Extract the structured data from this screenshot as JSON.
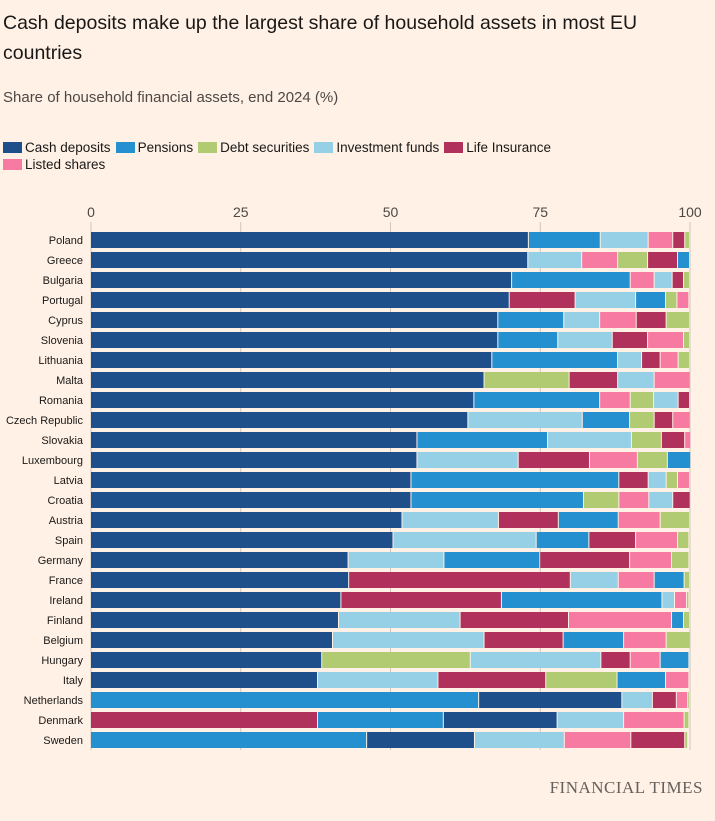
{
  "title": "Cash deposits make up the largest share of household assets in most EU countries",
  "subtitle": "Share of household financial assets, end 2024 (%)",
  "source": "FINANCIAL TIMES",
  "colors": {
    "cash": "#1f4f8b",
    "pensions": "#2590d0",
    "debt": "#b0cb72",
    "inv": "#96d0e6",
    "life": "#b0325c",
    "listed": "#f77aa2",
    "background": "#fff1e5"
  },
  "chart_data": {
    "type": "bar",
    "orientation": "horizontal-stacked",
    "xlim": [
      0,
      100
    ],
    "xticks": [
      0,
      25,
      50,
      75,
      100
    ],
    "grid": true,
    "legend_placement": "top-left",
    "legend": [
      {
        "key": "cash",
        "name": "Cash deposits"
      },
      {
        "key": "pensions",
        "name": "Pensions"
      },
      {
        "key": "debt",
        "name": "Debt securities"
      },
      {
        "key": "inv",
        "name": "Investment funds"
      },
      {
        "key": "life",
        "name": "Life Insurance"
      },
      {
        "key": "listed",
        "name": "Listed shares"
      }
    ],
    "rows": [
      {
        "country": "Poland",
        "segments": [
          [
            "cash",
            73.1
          ],
          [
            "pensions",
            12.0
          ],
          [
            "inv",
            8.0
          ],
          [
            "listed",
            4.1
          ],
          [
            "life",
            2.0
          ],
          [
            "debt",
            0.8
          ]
        ]
      },
      {
        "country": "Greece",
        "segments": [
          [
            "cash",
            73.0
          ],
          [
            "inv",
            9.0
          ],
          [
            "listed",
            6.0
          ],
          [
            "debt",
            5.0
          ],
          [
            "life",
            5.0
          ],
          [
            "pensions",
            2.0
          ]
        ]
      },
      {
        "country": "Bulgaria",
        "segments": [
          [
            "cash",
            70.3
          ],
          [
            "pensions",
            19.8
          ],
          [
            "listed",
            4.0
          ],
          [
            "inv",
            3.0
          ],
          [
            "life",
            1.9
          ],
          [
            "debt",
            1.0
          ]
        ]
      },
      {
        "country": "Portugal",
        "segments": [
          [
            "cash",
            69.9
          ],
          [
            "life",
            11.0
          ],
          [
            "inv",
            10.1
          ],
          [
            "pensions",
            5.0
          ],
          [
            "debt",
            1.9
          ],
          [
            "listed",
            2.0
          ]
        ]
      },
      {
        "country": "Cyprus",
        "segments": [
          [
            "cash",
            68.0
          ],
          [
            "pensions",
            11.0
          ],
          [
            "inv",
            6.0
          ],
          [
            "listed",
            6.1
          ],
          [
            "life",
            5.0
          ],
          [
            "debt",
            3.9
          ]
        ]
      },
      {
        "country": "Slovenia",
        "segments": [
          [
            "cash",
            68.0
          ],
          [
            "pensions",
            10.0
          ],
          [
            "inv",
            9.1
          ],
          [
            "life",
            5.9
          ],
          [
            "listed",
            6.0
          ],
          [
            "debt",
            1.0
          ]
        ]
      },
      {
        "country": "Lithuania",
        "segments": [
          [
            "cash",
            67.0
          ],
          [
            "pensions",
            21.0
          ],
          [
            "inv",
            4.0
          ],
          [
            "life",
            3.1
          ],
          [
            "listed",
            3.0
          ],
          [
            "debt",
            1.9
          ]
        ]
      },
      {
        "country": "Malta",
        "segments": [
          [
            "cash",
            65.7
          ],
          [
            "debt",
            14.2
          ],
          [
            "life",
            8.1
          ],
          [
            "inv",
            6.1
          ],
          [
            "listed",
            6.0
          ]
        ]
      },
      {
        "country": "Romania",
        "segments": [
          [
            "cash",
            64.0
          ],
          [
            "pensions",
            21.0
          ],
          [
            "listed",
            5.1
          ],
          [
            "debt",
            3.9
          ],
          [
            "inv",
            4.1
          ],
          [
            "life",
            1.9
          ]
        ]
      },
      {
        "country": "Czech Republic",
        "segments": [
          [
            "cash",
            63.0
          ],
          [
            "inv",
            19.1
          ],
          [
            "pensions",
            7.9
          ],
          [
            "debt",
            4.1
          ],
          [
            "life",
            3.1
          ],
          [
            "listed",
            2.9
          ]
        ]
      },
      {
        "country": "Slovakia",
        "segments": [
          [
            "cash",
            54.5
          ],
          [
            "pensions",
            21.8
          ],
          [
            "inv",
            14.0
          ],
          [
            "debt",
            5.0
          ],
          [
            "life",
            3.9
          ],
          [
            "listed",
            1.0
          ]
        ]
      },
      {
        "country": "Luxembourg",
        "segments": [
          [
            "cash",
            54.5
          ],
          [
            "inv",
            16.9
          ],
          [
            "life",
            11.9
          ],
          [
            "listed",
            8.0
          ],
          [
            "debt",
            5.0
          ],
          [
            "pensions",
            3.9
          ]
        ]
      },
      {
        "country": "Latvia",
        "segments": [
          [
            "cash",
            53.5
          ],
          [
            "pensions",
            34.7
          ],
          [
            "life",
            4.9
          ],
          [
            "inv",
            3.0
          ],
          [
            "debt",
            1.9
          ],
          [
            "listed",
            2.0
          ]
        ]
      },
      {
        "country": "Croatia",
        "segments": [
          [
            "cash",
            53.5
          ],
          [
            "pensions",
            28.8
          ],
          [
            "debt",
            5.9
          ],
          [
            "listed",
            5.0
          ],
          [
            "inv",
            4.0
          ],
          [
            "life",
            2.9
          ]
        ]
      },
      {
        "country": "Austria",
        "segments": [
          [
            "cash",
            52.0
          ],
          [
            "inv",
            16.1
          ],
          [
            "life",
            10.0
          ],
          [
            "pensions",
            10.0
          ],
          [
            "listed",
            7.0
          ],
          [
            "debt",
            4.9
          ]
        ]
      },
      {
        "country": "Spain",
        "segments": [
          [
            "cash",
            50.5
          ],
          [
            "inv",
            23.9
          ],
          [
            "pensions",
            8.8
          ],
          [
            "life",
            7.8
          ],
          [
            "listed",
            7.0
          ],
          [
            "debt",
            1.9
          ]
        ]
      },
      {
        "country": "Germany",
        "segments": [
          [
            "cash",
            43.0
          ],
          [
            "inv",
            16.0
          ],
          [
            "pensions",
            16.0
          ],
          [
            "life",
            15.0
          ],
          [
            "listed",
            7.0
          ],
          [
            "debt",
            2.9
          ]
        ]
      },
      {
        "country": "France",
        "segments": [
          [
            "cash",
            43.1
          ],
          [
            "life",
            37.0
          ],
          [
            "inv",
            8.0
          ],
          [
            "listed",
            6.0
          ],
          [
            "pensions",
            5.0
          ],
          [
            "debt",
            0.9
          ]
        ]
      },
      {
        "country": "Ireland",
        "segments": [
          [
            "cash",
            41.8
          ],
          [
            "life",
            26.8
          ],
          [
            "pensions",
            26.8
          ],
          [
            "inv",
            2.1
          ],
          [
            "listed",
            2.0
          ],
          [
            "debt",
            0.4
          ]
        ]
      },
      {
        "country": "Finland",
        "segments": [
          [
            "cash",
            41.4
          ],
          [
            "inv",
            20.3
          ],
          [
            "life",
            18.1
          ],
          [
            "listed",
            17.2
          ],
          [
            "pensions",
            2.0
          ],
          [
            "debt",
            1.0
          ]
        ]
      },
      {
        "country": "Belgium",
        "segments": [
          [
            "cash",
            40.4
          ],
          [
            "inv",
            25.3
          ],
          [
            "life",
            13.2
          ],
          [
            "pensions",
            10.1
          ],
          [
            "listed",
            7.1
          ],
          [
            "debt",
            4.0
          ]
        ]
      },
      {
        "country": "Hungary",
        "segments": [
          [
            "cash",
            38.6
          ],
          [
            "debt",
            24.8
          ],
          [
            "inv",
            21.8
          ],
          [
            "life",
            4.9
          ],
          [
            "listed",
            5.0
          ],
          [
            "pensions",
            4.8
          ]
        ]
      },
      {
        "country": "Italy",
        "segments": [
          [
            "cash",
            37.9
          ],
          [
            "inv",
            20.1
          ],
          [
            "life",
            18.0
          ],
          [
            "debt",
            11.9
          ],
          [
            "pensions",
            8.1
          ],
          [
            "listed",
            3.9
          ]
        ]
      },
      {
        "country": "Netherlands",
        "segments": [
          [
            "pensions",
            64.8
          ],
          [
            "cash",
            23.9
          ],
          [
            "inv",
            5.1
          ],
          [
            "life",
            4.0
          ],
          [
            "listed",
            1.9
          ],
          [
            "debt",
            0.3
          ]
        ]
      },
      {
        "country": "Denmark",
        "segments": [
          [
            "life",
            37.9
          ],
          [
            "pensions",
            21.0
          ],
          [
            "cash",
            19.0
          ],
          [
            "inv",
            11.1
          ],
          [
            "listed",
            10.1
          ],
          [
            "debt",
            0.8
          ]
        ]
      },
      {
        "country": "Sweden",
        "segments": [
          [
            "pensions",
            46.1
          ],
          [
            "cash",
            18.0
          ],
          [
            "inv",
            15.0
          ],
          [
            "listed",
            11.1
          ],
          [
            "life",
            9.0
          ],
          [
            "debt",
            0.5
          ]
        ]
      }
    ]
  }
}
